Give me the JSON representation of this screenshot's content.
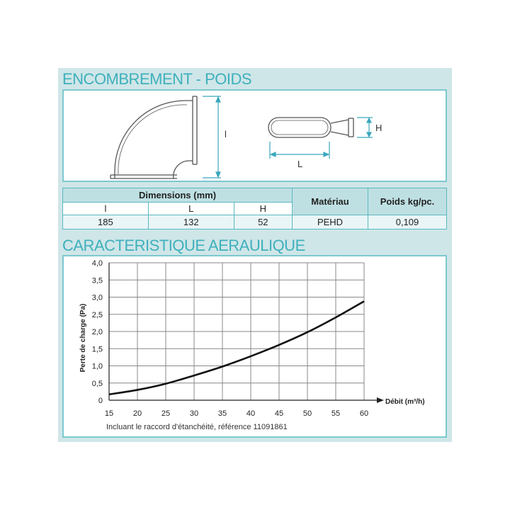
{
  "sections": {
    "encombrement_title": "ENCOMBREMENT - POIDS",
    "aeraulique_title": "CARACTERISTIQUE AERAULIQUE"
  },
  "drawing": {
    "label_l_height": "l",
    "label_h": "H",
    "label_L": "L"
  },
  "table": {
    "dimensions_header": "Dimensions (mm)",
    "materiau_header": "Matériau",
    "poids_header": "Poids kg/pc.",
    "sub_headers": [
      "l",
      "L",
      "H"
    ],
    "values": [
      "185",
      "132",
      "52",
      "PEHD",
      "0,109"
    ]
  },
  "chart_data": {
    "type": "line",
    "title": "",
    "xlabel": "Débit  (m³/h)",
    "ylabel": "Perte de charge (Pa)",
    "xlim": [
      15,
      60
    ],
    "ylim": [
      0,
      4.0
    ],
    "x_ticks": [
      "15",
      "20",
      "25",
      "30",
      "35",
      "40",
      "45",
      "50",
      "55",
      "60"
    ],
    "y_ticks": [
      "0",
      "0,5",
      "1,0",
      "1,5",
      "2,0",
      "2,5",
      "3,0",
      "3,5",
      "4,0"
    ],
    "grid": true,
    "series": [
      {
        "x": [
          15,
          20,
          25,
          30,
          35,
          40,
          45,
          50,
          55,
          60
        ],
        "y": [
          0.17,
          0.3,
          0.48,
          0.72,
          0.98,
          1.28,
          1.61,
          1.98,
          2.41,
          2.88
        ]
      }
    ],
    "note": "Incluant le raccord d'étanchéité, référence 11091861"
  }
}
